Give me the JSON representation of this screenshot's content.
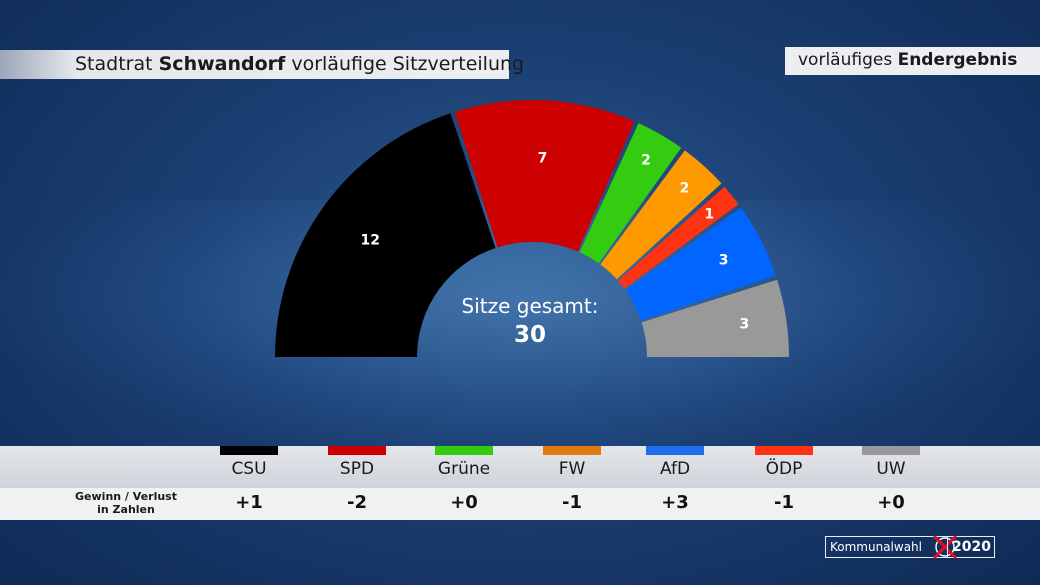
{
  "header": {
    "title_prefix": "Stadtrat",
    "title_city": "Schwandorf",
    "title_suffix": "vorläufige Sitzverteilung",
    "status_prefix": "vorläufiges",
    "status_bold": "Endergebnis"
  },
  "center": {
    "label": "Sitze gesamt:",
    "total": "30"
  },
  "change_caption": {
    "line1": "Gewinn / Verlust",
    "line2": "in Zahlen"
  },
  "badge": {
    "label": "Kommunalwahl",
    "year": "2020"
  },
  "colors": {
    "CSU": "#000000",
    "SPD": "#cc0000",
    "Grüne": "#33cc11",
    "FW": "#ff9900",
    "AfD": "#0066ff",
    "ÖDP": "#ff3311",
    "UW": "#999999"
  },
  "chart_data": {
    "type": "pie",
    "subtype": "semicircle-parliament",
    "categories": [
      "CSU",
      "SPD",
      "Grüne",
      "FW",
      "ÖDP",
      "AfD",
      "UW"
    ],
    "values": [
      12,
      7,
      2,
      2,
      1,
      3,
      3
    ],
    "colors": [
      "#000000",
      "#cc0000",
      "#33cc11",
      "#ff9900",
      "#ff3311",
      "#0066ff",
      "#999999"
    ],
    "total": 30
  },
  "legend": [
    {
      "party": "CSU",
      "color": "#000000",
      "swatch_color": "#000000",
      "change": "+1"
    },
    {
      "party": "SPD",
      "color": "#cc0000",
      "swatch_color": "#cc0000",
      "change": "-2"
    },
    {
      "party": "Grüne",
      "color": "#33cc11",
      "swatch_color": "#33cc11",
      "change": "+0"
    },
    {
      "party": "FW",
      "color": "#ff9900",
      "swatch_color": "#e07a10",
      "change": "-1"
    },
    {
      "party": "AfD",
      "color": "#0066ff",
      "swatch_color": "#1e6ff0",
      "change": "+3"
    },
    {
      "party": "ÖDP",
      "color": "#ff3311",
      "swatch_color": "#ff3311",
      "change": "-1"
    },
    {
      "party": "UW",
      "color": "#999999",
      "swatch_color": "#999999",
      "change": "+0"
    }
  ]
}
